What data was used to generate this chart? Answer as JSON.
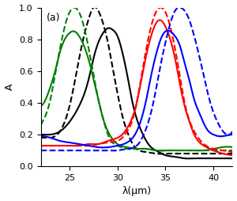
{
  "title": "(a)",
  "xlabel": "λ(μm)",
  "ylabel": "A",
  "xlim": [
    22,
    42
  ],
  "ylim": [
    0,
    1.0
  ],
  "xticks": [
    25,
    30,
    35,
    40
  ],
  "yticks": [
    0,
    0.2,
    0.4,
    0.6,
    0.8,
    1
  ],
  "black_solid": {
    "x": [
      22.0,
      23.0,
      24.0,
      25.0,
      26.0,
      27.0,
      27.5,
      28.0,
      28.5,
      29.0,
      29.5,
      30.0,
      30.5,
      31.0,
      31.5,
      32.0,
      32.5,
      33.0,
      33.5,
      34.0,
      35.0,
      36.0,
      37.0,
      38.0,
      39.0,
      40.0,
      42.0
    ],
    "y": [
      0.2,
      0.2,
      0.22,
      0.28,
      0.38,
      0.55,
      0.68,
      0.78,
      0.84,
      0.87,
      0.86,
      0.82,
      0.72,
      0.58,
      0.42,
      0.3,
      0.22,
      0.16,
      0.12,
      0.1,
      0.07,
      0.06,
      0.05,
      0.05,
      0.05,
      0.05,
      0.05
    ]
  },
  "black_dashed": {
    "x": [
      22.0,
      23.0,
      24.0,
      25.0,
      25.5,
      26.0,
      26.5,
      27.0,
      27.5,
      28.0,
      28.5,
      29.0,
      29.5,
      30.0,
      30.5,
      31.0,
      31.5,
      32.0,
      33.0,
      34.0,
      35.0,
      36.0,
      37.0,
      38.0,
      39.0,
      40.0,
      42.0
    ],
    "y": [
      0.18,
      0.18,
      0.22,
      0.38,
      0.52,
      0.68,
      0.82,
      0.93,
      1.0,
      0.98,
      0.9,
      0.78,
      0.62,
      0.46,
      0.32,
      0.22,
      0.15,
      0.11,
      0.09,
      0.08,
      0.08,
      0.08,
      0.08,
      0.08,
      0.08,
      0.08,
      0.08
    ]
  },
  "green_solid": {
    "x": [
      22.0,
      22.5,
      23.0,
      23.5,
      24.0,
      24.5,
      25.0,
      25.5,
      26.0,
      26.5,
      27.0,
      27.5,
      28.0,
      28.5,
      29.0,
      30.0,
      31.0,
      32.0,
      33.0,
      34.0,
      35.0,
      36.0,
      37.0,
      38.0,
      39.0,
      40.0,
      42.0
    ],
    "y": [
      0.38,
      0.42,
      0.5,
      0.6,
      0.72,
      0.8,
      0.84,
      0.85,
      0.82,
      0.76,
      0.67,
      0.55,
      0.42,
      0.3,
      0.22,
      0.14,
      0.12,
      0.11,
      0.11,
      0.1,
      0.1,
      0.1,
      0.1,
      0.1,
      0.1,
      0.11,
      0.12
    ]
  },
  "green_dashed": {
    "x": [
      22.0,
      22.5,
      23.0,
      23.5,
      24.0,
      24.5,
      25.0,
      25.5,
      26.0,
      26.5,
      27.0,
      27.5,
      28.0,
      28.5,
      29.0,
      30.0,
      31.0,
      32.0,
      33.0,
      34.0,
      35.0,
      36.0,
      37.0,
      38.0,
      39.0,
      40.0,
      42.0
    ],
    "y": [
      0.26,
      0.32,
      0.42,
      0.58,
      0.74,
      0.88,
      0.97,
      1.0,
      0.97,
      0.88,
      0.74,
      0.58,
      0.42,
      0.3,
      0.2,
      0.13,
      0.11,
      0.11,
      0.11,
      0.1,
      0.1,
      0.1,
      0.1,
      0.1,
      0.1,
      0.1,
      0.1
    ]
  },
  "red_solid": {
    "x": [
      22.0,
      23.0,
      24.0,
      25.0,
      26.0,
      27.0,
      28.0,
      29.0,
      30.0,
      30.5,
      31.0,
      31.5,
      32.0,
      32.5,
      33.0,
      33.5,
      34.0,
      34.5,
      35.0,
      35.5,
      36.0,
      36.5,
      37.0,
      37.5,
      38.0,
      39.0,
      40.0,
      41.0,
      42.0
    ],
    "y": [
      0.13,
      0.13,
      0.13,
      0.13,
      0.13,
      0.14,
      0.14,
      0.16,
      0.18,
      0.2,
      0.24,
      0.3,
      0.4,
      0.55,
      0.7,
      0.82,
      0.9,
      0.92,
      0.88,
      0.8,
      0.68,
      0.52,
      0.38,
      0.28,
      0.2,
      0.13,
      0.1,
      0.08,
      0.07
    ]
  },
  "red_dashed": {
    "x": [
      22.0,
      23.0,
      24.0,
      25.0,
      26.0,
      27.0,
      28.0,
      29.0,
      30.0,
      30.5,
      31.0,
      31.5,
      32.0,
      32.5,
      33.0,
      33.5,
      34.0,
      34.5,
      35.0,
      35.5,
      36.0,
      36.5,
      37.0,
      38.0,
      39.0,
      40.0,
      41.0,
      42.0
    ],
    "y": [
      0.13,
      0.13,
      0.13,
      0.13,
      0.13,
      0.13,
      0.14,
      0.15,
      0.16,
      0.18,
      0.22,
      0.28,
      0.4,
      0.57,
      0.74,
      0.88,
      0.97,
      1.0,
      0.97,
      0.88,
      0.74,
      0.57,
      0.4,
      0.22,
      0.14,
      0.11,
      0.1,
      0.09
    ]
  },
  "blue_solid": {
    "x": [
      22.0,
      23.0,
      24.0,
      25.0,
      26.0,
      27.0,
      28.0,
      29.0,
      30.0,
      31.0,
      32.0,
      32.5,
      33.0,
      33.5,
      34.0,
      34.5,
      35.0,
      35.5,
      36.0,
      36.5,
      37.0,
      37.5,
      38.0,
      38.5,
      39.0,
      39.5,
      40.0,
      40.5,
      41.0,
      42.0
    ],
    "y": [
      0.19,
      0.18,
      0.16,
      0.15,
      0.14,
      0.13,
      0.12,
      0.12,
      0.13,
      0.15,
      0.22,
      0.3,
      0.42,
      0.57,
      0.7,
      0.8,
      0.85,
      0.85,
      0.82,
      0.76,
      0.65,
      0.54,
      0.42,
      0.34,
      0.27,
      0.22,
      0.2,
      0.19,
      0.19,
      0.2
    ]
  },
  "blue_dashed": {
    "x": [
      22.0,
      23.0,
      24.0,
      25.0,
      26.0,
      27.0,
      28.0,
      29.0,
      30.0,
      31.0,
      32.0,
      32.5,
      33.0,
      33.5,
      34.0,
      34.5,
      35.0,
      35.5,
      36.0,
      36.5,
      37.0,
      37.5,
      38.0,
      38.5,
      39.0,
      39.5,
      40.0,
      40.5,
      41.0,
      42.0
    ],
    "y": [
      0.1,
      0.1,
      0.1,
      0.1,
      0.1,
      0.1,
      0.1,
      0.1,
      0.1,
      0.11,
      0.13,
      0.17,
      0.24,
      0.34,
      0.48,
      0.64,
      0.78,
      0.9,
      0.98,
      1.0,
      0.98,
      0.92,
      0.82,
      0.7,
      0.57,
      0.44,
      0.34,
      0.27,
      0.22,
      0.22
    ]
  }
}
